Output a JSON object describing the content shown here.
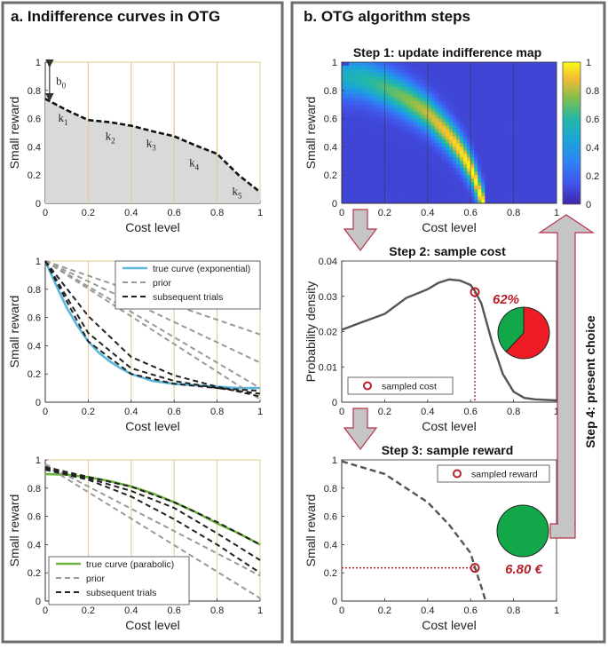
{
  "panel_a": {
    "title": "a. Indifference curves in OTG",
    "xlabel": "Cost level",
    "ylabel": "Small reward",
    "ticks": [
      "0",
      "0.2",
      "0.4",
      "0.6",
      "0.8",
      "1"
    ],
    "plot1": {
      "b_label": "b",
      "b_sub": "0",
      "k_labels": [
        {
          "k": "k",
          "s": "1"
        },
        {
          "k": "k",
          "s": "2"
        },
        {
          "k": "k",
          "s": "3"
        },
        {
          "k": "k",
          "s": "4"
        },
        {
          "k": "k",
          "s": "5"
        }
      ]
    },
    "plot2": {
      "legend": [
        "true curve (exponential)",
        "prior",
        "subsequent trials"
      ],
      "true_color": "#5bb6dc"
    },
    "plot3": {
      "legend": [
        "true curve (parabolic)",
        "prior",
        "subsequent trials"
      ],
      "true_color": "#6ab23b"
    }
  },
  "panel_b": {
    "title": "b. OTG algorithm steps",
    "step1": {
      "title": "Step 1: update indifference map",
      "xlabel": "Cost level",
      "ylabel": "Small reward",
      "colorbar_ticks": [
        "1",
        "0.8",
        "0.6",
        "0.4",
        "0.2",
        "0"
      ]
    },
    "step2": {
      "title": "Step 2: sample cost",
      "xlabel": "Cost level",
      "ylabel": "Probability density",
      "yticks": [
        "0.04",
        "0.03",
        "0.02",
        "0.01",
        "0"
      ],
      "legend": "sampled cost",
      "percent": "62%"
    },
    "step3": {
      "title": "Step 3: sample reward",
      "xlabel": "Cost level",
      "ylabel": "Small reward",
      "legend": "sampled reward",
      "amount": "6.80 €"
    },
    "step4": {
      "label": "Step 4: present choice"
    }
  },
  "colors": {
    "accent_red": "#b81f2b",
    "pie_green": "#12a84a",
    "pie_red": "#ee1c24",
    "arrow_fill": "#c5c5c5",
    "grid_gold": "#e3c88a"
  },
  "chart_data": [
    {
      "type": "area",
      "title": "a. plot 1",
      "x": [
        0,
        0.1,
        0.2,
        0.3,
        0.4,
        0.5,
        0.6,
        0.7,
        0.8,
        0.9,
        1
      ],
      "values": [
        0.74,
        0.66,
        0.59,
        0.575,
        0.55,
        0.51,
        0.475,
        0.41,
        0.35,
        0.2,
        0.08
      ],
      "xlim": [
        0,
        1
      ],
      "ylim": [
        0,
        1
      ],
      "xlabel": "Cost level",
      "ylabel": "Small reward"
    },
    {
      "type": "line",
      "title": "a. plot 2",
      "xlabel": "Cost level",
      "ylabel": "Small reward",
      "xlim": [
        0,
        1
      ],
      "ylim": [
        0,
        1
      ],
      "series": [
        {
          "name": "true curve (exponential)",
          "x": [
            0,
            0.05,
            0.1,
            0.15,
            0.2,
            0.25,
            0.3,
            0.35,
            0.4,
            0.5,
            0.6,
            0.7,
            0.8,
            0.9,
            1
          ],
          "values": [
            1,
            0.83,
            0.67,
            0.54,
            0.43,
            0.35,
            0.29,
            0.24,
            0.2,
            0.15,
            0.13,
            0.12,
            0.11,
            0.1,
            0.1
          ]
        },
        {
          "name": "prior",
          "x": [
            0,
            1
          ],
          "values": [
            1,
            0.48
          ]
        },
        {
          "name": "prior",
          "x": [
            0,
            1
          ],
          "values": [
            1,
            0.28
          ]
        },
        {
          "name": "prior",
          "x": [
            0,
            1
          ],
          "values": [
            1,
            0.1
          ]
        },
        {
          "name": "prior",
          "x": [
            0,
            1
          ],
          "values": [
            1,
            0.02
          ]
        },
        {
          "name": "subsequent trials",
          "x": [
            0,
            0.2,
            0.4,
            0.6,
            0.8,
            1
          ],
          "values": [
            1,
            0.61,
            0.32,
            0.19,
            0.11,
            0.04
          ]
        },
        {
          "name": "subsequent trials",
          "x": [
            0,
            0.2,
            0.4,
            0.6,
            0.8,
            1
          ],
          "values": [
            1,
            0.49,
            0.24,
            0.15,
            0.1,
            0.06
          ]
        },
        {
          "name": "subsequent trials",
          "x": [
            0,
            0.2,
            0.4,
            0.6,
            0.8,
            1
          ],
          "values": [
            1,
            0.43,
            0.2,
            0.13,
            0.1,
            0.08
          ]
        }
      ]
    },
    {
      "type": "line",
      "title": "a. plot 3",
      "xlabel": "Cost level",
      "ylabel": "Small reward",
      "xlim": [
        0,
        1
      ],
      "ylim": [
        0,
        1
      ],
      "series": [
        {
          "name": "true curve (parabolic)",
          "x": [
            0,
            0.1,
            0.2,
            0.3,
            0.4,
            0.5,
            0.6,
            0.7,
            0.8,
            0.9,
            1
          ],
          "values": [
            0.9,
            0.895,
            0.878,
            0.85,
            0.812,
            0.762,
            0.7,
            0.63,
            0.55,
            0.48,
            0.4
          ]
        },
        {
          "name": "prior",
          "x": [
            0,
            1
          ],
          "values": [
            0.96,
            0.02
          ]
        },
        {
          "name": "prior",
          "x": [
            0,
            1
          ],
          "values": [
            0.97,
            0.18
          ]
        },
        {
          "name": "subsequent trials",
          "x": [
            0,
            0.2,
            0.4,
            0.6,
            0.8,
            1
          ],
          "values": [
            0.93,
            0.86,
            0.74,
            0.58,
            0.4,
            0.2
          ]
        },
        {
          "name": "subsequent trials",
          "x": [
            0,
            0.2,
            0.4,
            0.6,
            0.8,
            1
          ],
          "values": [
            0.94,
            0.87,
            0.78,
            0.66,
            0.48,
            0.29
          ]
        },
        {
          "name": "subsequent trials",
          "x": [
            0,
            0.2,
            0.4,
            0.6,
            0.8,
            1
          ],
          "values": [
            0.95,
            0.88,
            0.81,
            0.7,
            0.56,
            0.4
          ]
        }
      ]
    },
    {
      "type": "heatmap",
      "title": "Step 1: update indifference map",
      "xlabel": "Cost level",
      "ylabel": "Small reward",
      "xlim": [
        0,
        1
      ],
      "ylim": [
        0,
        1
      ],
      "ridge_x": [
        0,
        0.1,
        0.2,
        0.3,
        0.4,
        0.5,
        0.55,
        0.6,
        0.62,
        0.64,
        0.66
      ],
      "ridge_y": [
        0.9,
        0.88,
        0.82,
        0.74,
        0.64,
        0.48,
        0.38,
        0.25,
        0.18,
        0.08,
        0
      ],
      "colorbar": [
        0,
        1
      ]
    },
    {
      "type": "line",
      "title": "Step 2: sample cost",
      "xlabel": "Cost level",
      "ylabel": "Probability density",
      "xlim": [
        0,
        1
      ],
      "ylim": [
        0,
        0.04
      ],
      "x": [
        0,
        0.1,
        0.2,
        0.3,
        0.4,
        0.45,
        0.5,
        0.55,
        0.6,
        0.62,
        0.65,
        0.7,
        0.75,
        0.8,
        0.85,
        0.9,
        1
      ],
      "values": [
        0.0205,
        0.0228,
        0.025,
        0.0295,
        0.032,
        0.0338,
        0.0348,
        0.0345,
        0.0332,
        0.0315,
        0.028,
        0.017,
        0.008,
        0.003,
        0.0012,
        0.0008,
        0.0005
      ],
      "sampled_cost": {
        "x": 0.62,
        "y": 0.0312
      }
    },
    {
      "type": "line",
      "title": "Step 3: sample reward",
      "xlabel": "Cost level",
      "ylabel": "Small reward",
      "xlim": [
        0,
        1
      ],
      "ylim": [
        0,
        1
      ],
      "x": [
        0,
        0.2,
        0.4,
        0.5,
        0.6,
        0.62,
        0.65,
        0.67
      ],
      "values": [
        0.99,
        0.9,
        0.7,
        0.54,
        0.34,
        0.24,
        0.1,
        0
      ],
      "sampled_reward": {
        "x": 0.62,
        "y": 0.235
      }
    }
  ]
}
